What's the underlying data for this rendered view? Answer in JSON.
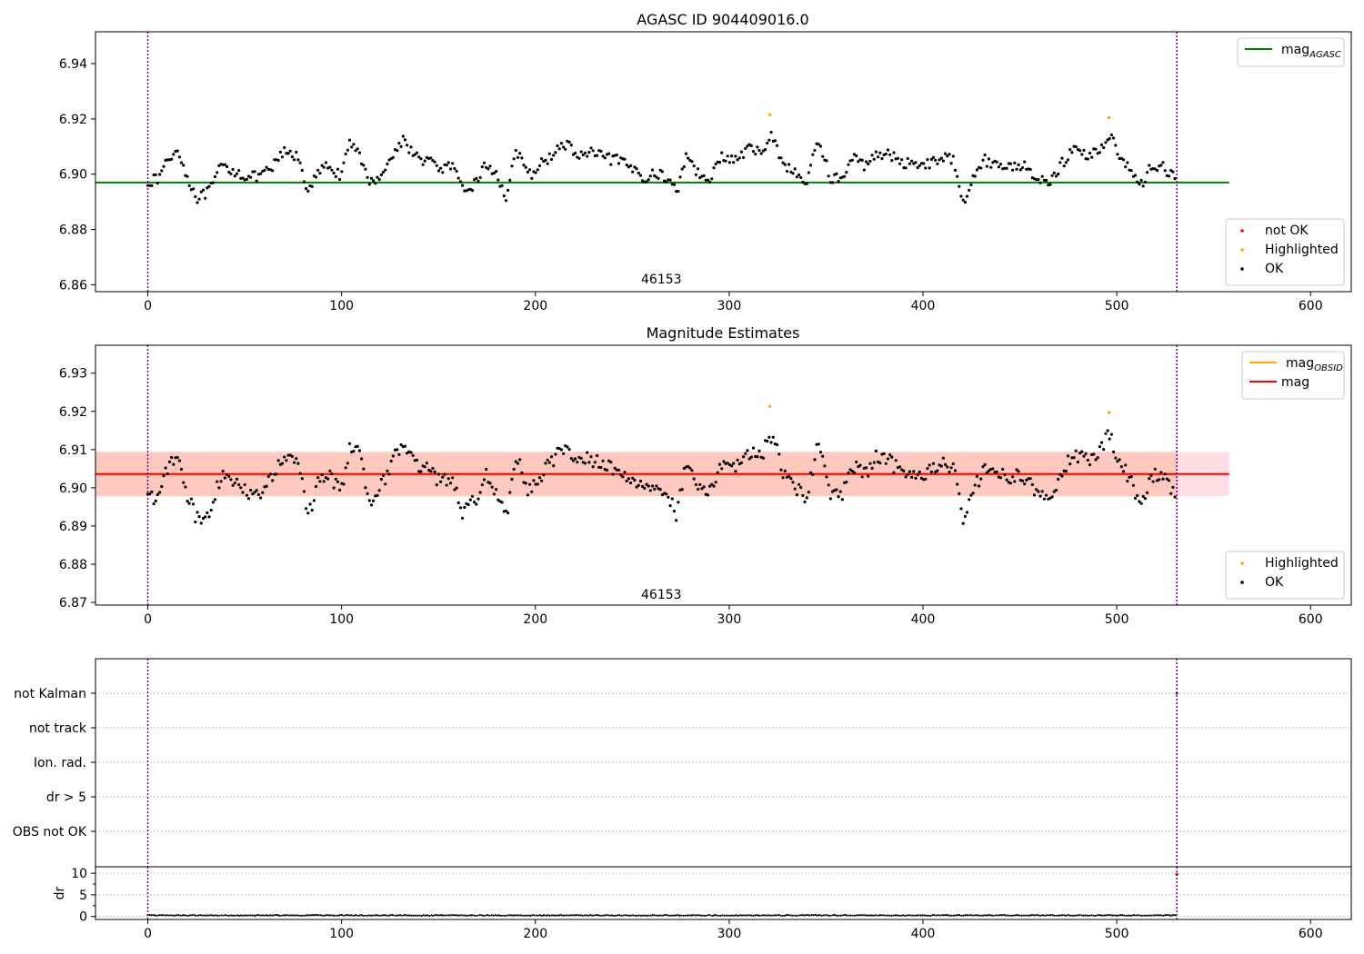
{
  "chart_data": [
    {
      "type": "scatter",
      "title": "AGASC ID 904409016.0",
      "xlim": [
        -27,
        621
      ],
      "ylim": [
        6.8575,
        6.9515
      ],
      "xticks": [
        0,
        100,
        200,
        300,
        400,
        500,
        600
      ],
      "yticks": [
        6.86,
        6.88,
        6.9,
        6.92,
        6.94
      ],
      "tick_precision": 2,
      "annotation": {
        "text": "46153",
        "x": 265,
        "y": 6.8605
      },
      "vlines": [
        0,
        531
      ],
      "hlines": [
        {
          "name": "mag_AGASC",
          "y": 6.897,
          "x_range": [
            -27,
            558
          ],
          "color": "#008000"
        }
      ],
      "legends": [
        {
          "position": "top-right",
          "entries": [
            {
              "kind": "line",
              "label_main": "mag",
              "label_sub": "AGASC",
              "color": "#008000"
            }
          ]
        },
        {
          "position": "bottom-right",
          "entries": [
            {
              "kind": "point",
              "label": "not OK",
              "color": "#ff0000"
            },
            {
              "kind": "point",
              "label": "Highlighted",
              "color": "#ffa500"
            },
            {
              "kind": "point",
              "label": "OK",
              "color": "#000000"
            }
          ]
        }
      ],
      "series": [
        {
          "name": "not OK",
          "color": "#ff0000",
          "points": []
        },
        {
          "name": "Highlighted",
          "color": "#ffa500",
          "points": [
            [
              321,
              6.9215
            ],
            [
              496,
              6.9205
            ]
          ]
        },
        {
          "name": "OK",
          "color": "#000000",
          "trend": [
            [
              0,
              6.8975
            ],
            [
              5,
              6.898
            ],
            [
              10,
              6.905
            ],
            [
              16,
              6.909
            ],
            [
              20,
              6.899
            ],
            [
              26,
              6.891
            ],
            [
              32,
              6.894
            ],
            [
              38,
              6.903
            ],
            [
              45,
              6.901
            ],
            [
              52,
              6.899
            ],
            [
              58,
              6.899
            ],
            [
              64,
              6.902
            ],
            [
              70,
              6.908
            ],
            [
              78,
              6.906
            ],
            [
              83,
              6.893
            ],
            [
              88,
              6.901
            ],
            [
              94,
              6.903
            ],
            [
              100,
              6.899
            ],
            [
              104,
              6.911
            ],
            [
              109,
              6.909
            ],
            [
              114,
              6.896
            ],
            [
              120,
              6.9
            ],
            [
              126,
              6.906
            ],
            [
              132,
              6.913
            ],
            [
              138,
              6.906
            ],
            [
              145,
              6.905
            ],
            [
              150,
              6.902
            ],
            [
              157,
              6.903
            ],
            [
              163,
              6.893
            ],
            [
              169,
              6.897
            ],
            [
              175,
              6.904
            ],
            [
              180,
              6.899
            ],
            [
              185,
              6.892
            ],
            [
              190,
              6.909
            ],
            [
              196,
              6.899
            ],
            [
              202,
              6.903
            ],
            [
              210,
              6.908
            ],
            [
              217,
              6.911
            ],
            [
              222,
              6.906
            ],
            [
              228,
              6.908
            ],
            [
              235,
              6.906
            ],
            [
              242,
              6.905
            ],
            [
              250,
              6.902
            ],
            [
              256,
              6.899
            ],
            [
              262,
              6.9
            ],
            [
              268,
              6.899
            ],
            [
              273,
              6.893
            ],
            [
              278,
              6.908
            ],
            [
              284,
              6.9
            ],
            [
              290,
              6.899
            ],
            [
              296,
              6.906
            ],
            [
              303,
              6.905
            ],
            [
              310,
              6.909
            ],
            [
              316,
              6.908
            ],
            [
              322,
              6.914
            ],
            [
              328,
              6.904
            ],
            [
              334,
              6.9
            ],
            [
              340,
              6.897
            ],
            [
              346,
              6.913
            ],
            [
              352,
              6.899
            ],
            [
              358,
              6.898
            ],
            [
              364,
              6.906
            ],
            [
              370,
              6.903
            ],
            [
              376,
              6.908
            ],
            [
              382,
              6.907
            ],
            [
              390,
              6.904
            ],
            [
              397,
              6.904
            ],
            [
              404,
              6.904
            ],
            [
              410,
              6.906
            ],
            [
              416,
              6.905
            ],
            [
              421,
              6.89
            ],
            [
              426,
              6.9
            ],
            [
              432,
              6.905
            ],
            [
              440,
              6.903
            ],
            [
              447,
              6.903
            ],
            [
              454,
              6.903
            ],
            [
              460,
              6.897
            ],
            [
              466,
              6.898
            ],
            [
              472,
              6.904
            ],
            [
              478,
              6.909
            ],
            [
              484,
              6.907
            ],
            [
              490,
              6.908
            ],
            [
              496,
              6.914
            ],
            [
              500,
              6.909
            ],
            [
              506,
              6.903
            ],
            [
              512,
              6.895
            ],
            [
              518,
              6.903
            ],
            [
              524,
              6.903
            ],
            [
              530,
              6.898
            ]
          ],
          "count": 520,
          "x_range": [
            0,
            530
          ],
          "jitter": 0.004
        }
      ]
    },
    {
      "type": "scatter",
      "title": "Magnitude Estimates",
      "xlim": [
        -27,
        621
      ],
      "ylim": [
        6.8693,
        6.9373
      ],
      "xticks": [
        0,
        100,
        200,
        300,
        400,
        500,
        600
      ],
      "yticks": [
        6.87,
        6.88,
        6.89,
        6.9,
        6.91,
        6.92,
        6.93
      ],
      "tick_precision": 2,
      "annotation": {
        "text": "46153",
        "x": 265,
        "y": 6.871
      },
      "vlines": [
        0,
        531
      ],
      "bands": [
        {
          "y": [
            6.8978,
            6.9094
          ],
          "x_range": [
            -27,
            558
          ],
          "color": "#ffc0cb",
          "opacity": 0.5
        },
        {
          "y": [
            6.8978,
            6.9094
          ],
          "x_range": [
            -27,
            531
          ],
          "color": "#ffa07a",
          "opacity": 0.35
        }
      ],
      "hlines": [
        {
          "name": "mag_OBSID",
          "y": 6.9036,
          "x_range": [
            -27,
            531
          ],
          "color": "#ffa500"
        },
        {
          "name": "mag",
          "y": 6.9036,
          "x_range": [
            -27,
            558
          ],
          "color": "#ff0000"
        }
      ],
      "legends": [
        {
          "position": "top-right",
          "entries": [
            {
              "kind": "line",
              "label_main": "mag",
              "label_sub": "OBSID",
              "color": "#ffa500"
            },
            {
              "kind": "line",
              "label": "mag",
              "color": "#ff0000"
            }
          ]
        },
        {
          "position": "bottom-right",
          "entries": [
            {
              "kind": "point",
              "label": "Highlighted",
              "color": "#ffa500"
            },
            {
              "kind": "point",
              "label": "OK",
              "color": "#000000"
            }
          ]
        }
      ],
      "series": [
        {
          "name": "Highlighted",
          "color": "#ffa500",
          "points": [
            [
              321,
              6.9213
            ],
            [
              496,
              6.9197
            ]
          ]
        },
        {
          "name": "OK",
          "color": "#000000",
          "trend_from": 0,
          "count": 520,
          "x_range": [
            0,
            530
          ],
          "jitter": 0.004
        }
      ]
    },
    {
      "type": "scatter",
      "title": "",
      "xlim": [
        -27,
        621
      ],
      "categories": [
        "not Kalman",
        "not track",
        "Ion. rad.",
        "dr > 5",
        "OBS not OK"
      ],
      "vlines": [
        0,
        531
      ],
      "markers": [
        {
          "category": "not Kalman",
          "x": 531,
          "color": "#4b0082"
        }
      ],
      "series": []
    },
    {
      "type": "scatter",
      "title": "",
      "xlim": [
        -27,
        621
      ],
      "ylim": [
        -0.7,
        11.5
      ],
      "xticks": [
        0,
        100,
        200,
        300,
        400,
        500,
        600
      ],
      "yticks": [
        0,
        5,
        10
      ],
      "minor_yticks": [
        2.5,
        7.5
      ],
      "tick_precision": 0,
      "ylabel": "dr",
      "vlines": [
        0,
        531
      ],
      "series": [
        {
          "name": "dr",
          "color": "#000000",
          "count": 530,
          "x_range": [
            0,
            530
          ],
          "y_base": 0.25,
          "jitter": 0.2
        },
        {
          "name": "dr outlier",
          "color": "#ff0000",
          "points": [
            [
              531,
              9.8
            ]
          ]
        }
      ]
    }
  ]
}
